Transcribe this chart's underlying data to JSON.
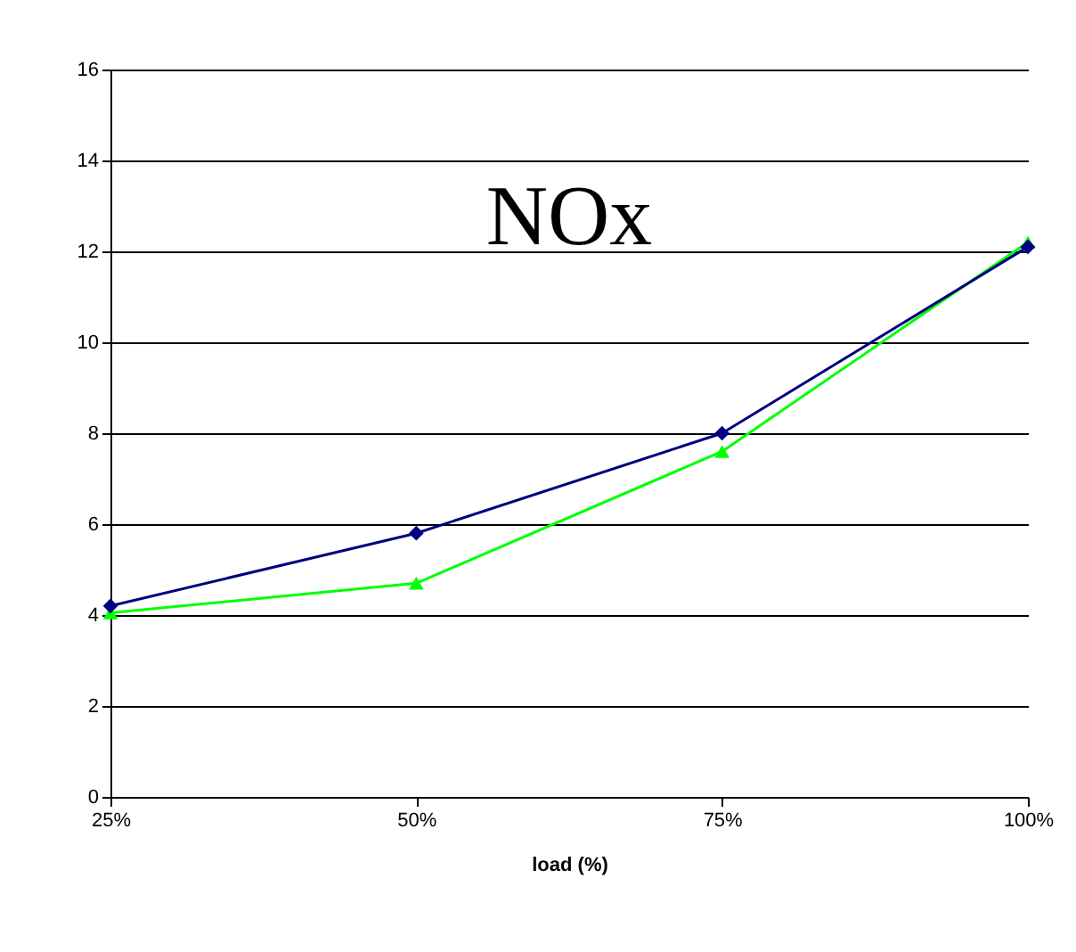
{
  "chart_data": {
    "type": "line",
    "title": "NOx",
    "xlabel": "load (%)",
    "categories": [
      "25%",
      "50%",
      "75%",
      "100%"
    ],
    "series": [
      {
        "color": "#000080",
        "marker": "diamond",
        "values": [
          4.2,
          5.8,
          8.0,
          12.1
        ]
      },
      {
        "color": "#00ff00",
        "marker": "triangle",
        "values": [
          4.05,
          4.7,
          7.6,
          12.2
        ]
      }
    ],
    "ylim": [
      0,
      16
    ],
    "yticks": [
      0,
      2,
      4,
      6,
      8,
      10,
      12,
      14,
      16
    ],
    "grid": "y"
  }
}
